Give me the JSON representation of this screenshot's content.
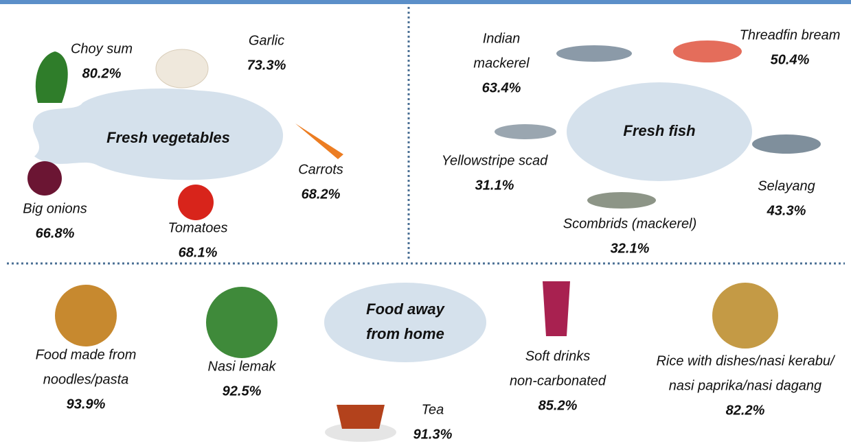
{
  "sections": [
    {
      "title": [
        "Fresh vegetables"
      ],
      "items": [
        {
          "name": [
            "Choy sum"
          ],
          "value": "80.2%"
        },
        {
          "name": [
            "Garlic"
          ],
          "value": "73.3%"
        },
        {
          "name": [
            "Carrots"
          ],
          "value": "68.2%"
        },
        {
          "name": [
            "Tomatoes"
          ],
          "value": "68.1%"
        },
        {
          "name": [
            "Big onions"
          ],
          "value": "66.8%"
        }
      ]
    },
    {
      "title": [
        "Fresh fish"
      ],
      "items": [
        {
          "name": [
            "Indian",
            "mackerel"
          ],
          "value": "63.4%"
        },
        {
          "name": [
            "Threadfin bream"
          ],
          "value": "50.4%"
        },
        {
          "name": [
            "Yellowstripe scad"
          ],
          "value": "31.1%"
        },
        {
          "name": [
            "Selayang"
          ],
          "value": "43.3%"
        },
        {
          "name": [
            "Scombrids (mackerel)"
          ],
          "value": "32.1%"
        }
      ]
    },
    {
      "title": [
        "Food away",
        "from home"
      ],
      "items": [
        {
          "name": [
            "Food made from",
            "noodles/pasta"
          ],
          "value": "93.9%"
        },
        {
          "name": [
            "Nasi lemak"
          ],
          "value": "92.5%"
        },
        {
          "name": [
            "Tea"
          ],
          "value": "91.3%"
        },
        {
          "name": [
            "Soft drinks",
            "non-carbonated"
          ],
          "value": "85.2%"
        },
        {
          "name": [
            "Rice with dishes/nasi kerabu/",
            "nasi paprika/nasi dagang"
          ],
          "value": "82.2%"
        }
      ]
    }
  ]
}
